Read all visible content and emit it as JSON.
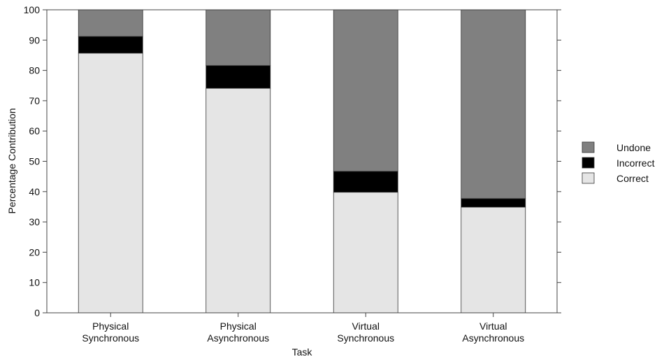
{
  "chart_data": {
    "type": "bar",
    "stacked": true,
    "categories": [
      [
        "Physical",
        "Synchronous"
      ],
      [
        "Physical",
        "Asynchronous"
      ],
      [
        "Virtual",
        "Synchronous"
      ],
      [
        "Virtual",
        "Asynchronous"
      ]
    ],
    "series": [
      {
        "name": "Correct",
        "color": "#e5e5e5",
        "values": [
          85.7,
          74.1,
          39.8,
          34.9
        ]
      },
      {
        "name": "Incorrect",
        "color": "#000000",
        "values": [
          5.5,
          7.5,
          6.9,
          2.8
        ]
      },
      {
        "name": "Undone",
        "color": "#808080",
        "values": [
          8.8,
          18.4,
          53.3,
          62.3
        ]
      }
    ],
    "legend_order": [
      "Undone",
      "Incorrect",
      "Correct"
    ],
    "legend_position": "right",
    "xlabel": "Task",
    "ylabel": "Percentage Contribution",
    "ylim": [
      0,
      100
    ],
    "yticks": [
      0,
      10,
      20,
      30,
      40,
      50,
      60,
      70,
      80,
      90,
      100
    ],
    "grid": false
  }
}
